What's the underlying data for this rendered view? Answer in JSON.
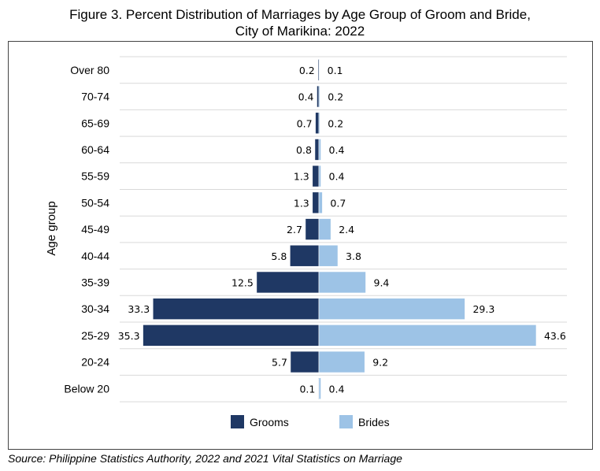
{
  "title_line1": "Figure 3. Percent Distribution of Marriages by Age Group of Groom and Bride,",
  "title_line2": "City of Marikina: 2022",
  "source": "Source: Philippine Statistics Authority, 2022 and 2021 Vital Statistics on Marriage",
  "colors": {
    "grooms": "#1f3864",
    "brides": "#9dc3e6",
    "grid": "#d9d9d9"
  },
  "chart_data": {
    "type": "bar",
    "orientation": "horizontal-population-pyramid",
    "title": "Percent Distribution of Marriages by Age Group of Groom and Bride, City of Marikina: 2022",
    "ylabel": "Age group",
    "xlabel": "",
    "categories": [
      "Over 80",
      "70-74",
      "65-69",
      "60-64",
      "55-59",
      "50-54",
      "45-49",
      "40-44",
      "35-39",
      "30-34",
      "25-29",
      "20-24",
      "Below 20"
    ],
    "series": [
      {
        "name": "Grooms",
        "values": [
          0.2,
          0.4,
          0.7,
          0.8,
          1.3,
          1.3,
          2.7,
          5.8,
          12.5,
          33.3,
          35.3,
          5.7,
          0.1
        ]
      },
      {
        "name": "Brides",
        "values": [
          0.1,
          0.2,
          0.2,
          0.4,
          0.4,
          0.7,
          2.4,
          3.8,
          9.4,
          29.3,
          43.6,
          9.2,
          0.4
        ]
      }
    ],
    "legend": [
      "Grooms",
      "Brides"
    ],
    "legend_position": "bottom"
  }
}
